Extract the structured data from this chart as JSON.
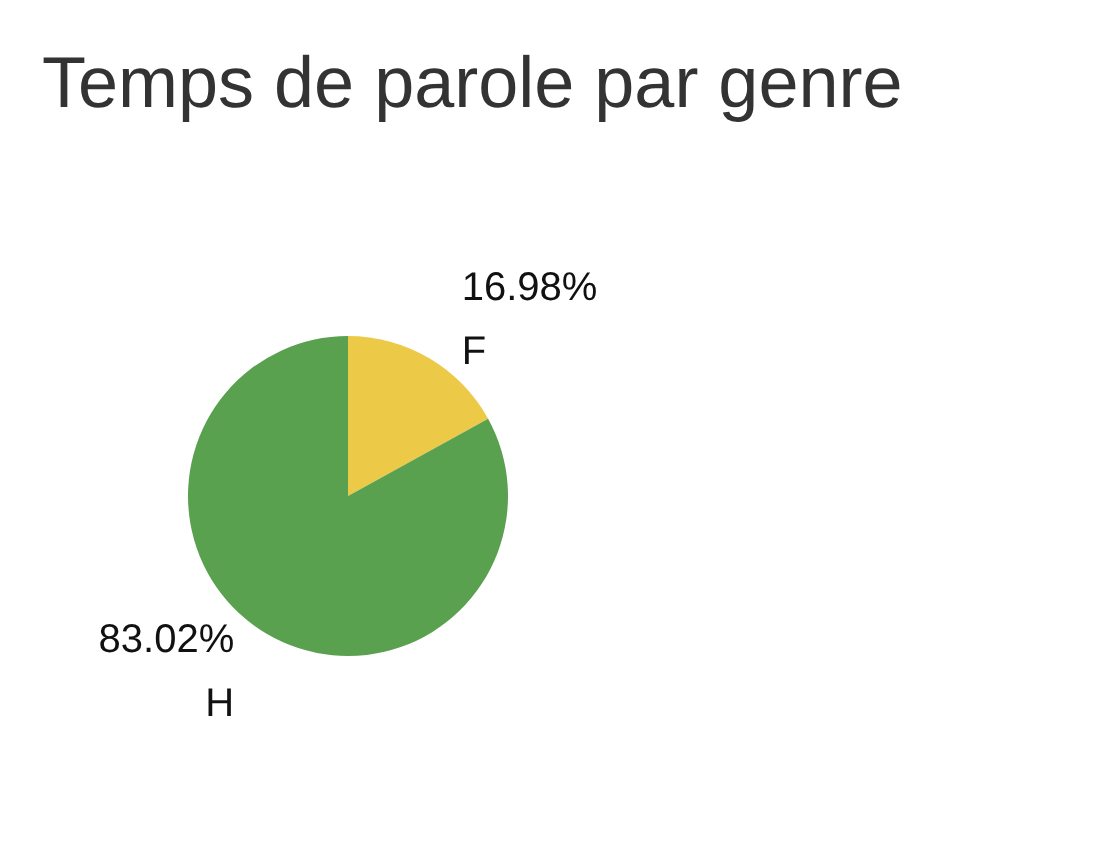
{
  "chart_data": {
    "type": "pie",
    "title": "Temps de parole par genre",
    "categories": [
      "F",
      "H"
    ],
    "values": [
      16.98,
      83.02
    ],
    "colors": [
      "#edc948",
      "#59a14f"
    ],
    "value_labels": [
      "16.98%",
      "83.02%"
    ],
    "legend": false
  }
}
